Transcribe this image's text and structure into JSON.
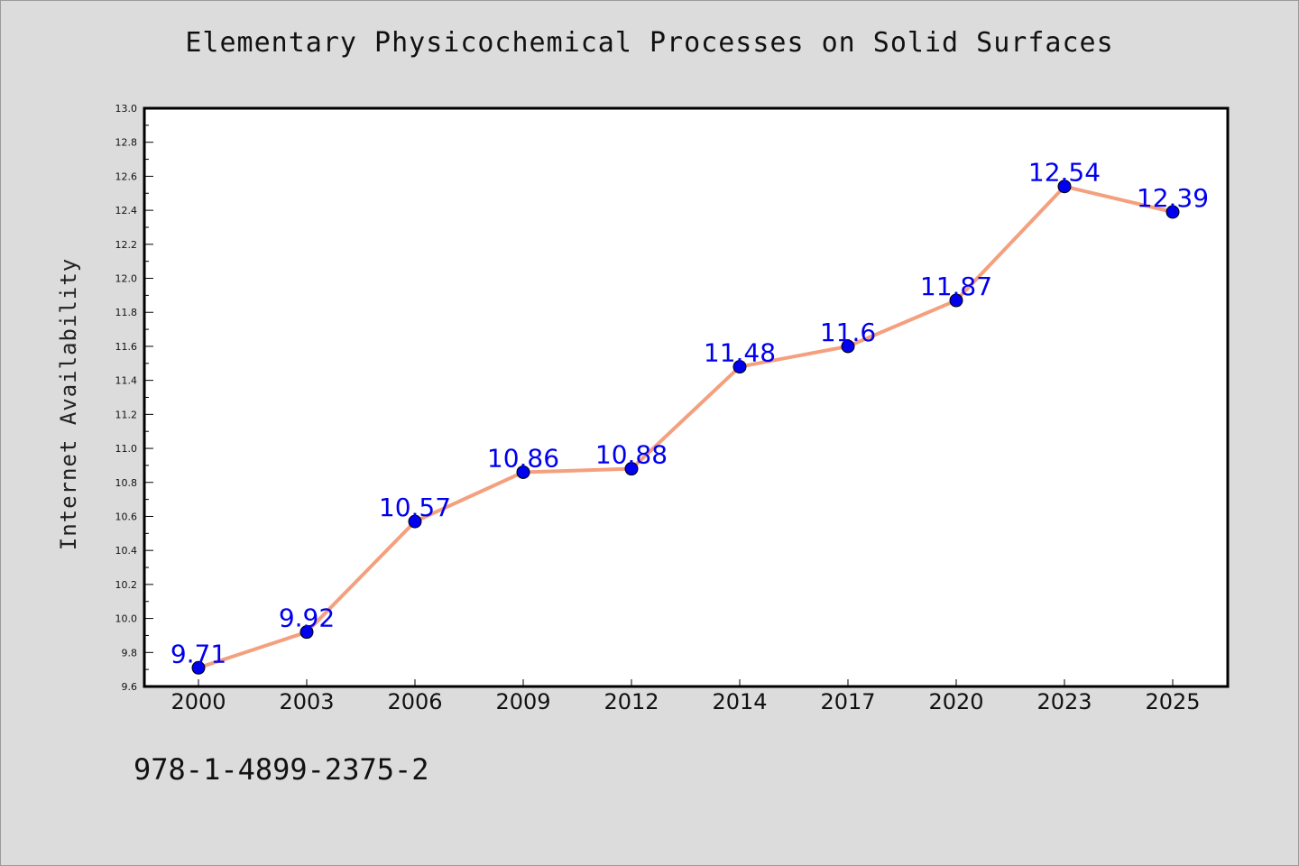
{
  "page": {
    "isbn": "978-1-4899-2375-2"
  },
  "chart_data": {
    "type": "line",
    "title": "Elementary Physicochemical Processes on Solid Surfaces",
    "xlabel": "",
    "ylabel": "Internet Availability",
    "categories": [
      "2000",
      "2003",
      "2006",
      "2009",
      "2012",
      "2014",
      "2017",
      "2020",
      "2023",
      "2025"
    ],
    "series": [
      {
        "values": [
          9.71,
          9.92,
          10.57,
          10.86,
          10.88,
          11.48,
          11.6,
          11.87,
          12.54,
          12.39
        ],
        "data_labels": [
          "9.71",
          "9.92",
          "10.57",
          "10.86",
          "10.88",
          "11.48",
          "11.6",
          "11.87",
          "12.54",
          "12.39"
        ]
      }
    ],
    "ylim": [
      9.6,
      13.0
    ],
    "yticks": [
      "9.6",
      "9.8",
      "10.0",
      "10.2",
      "10.4",
      "10.6",
      "10.8",
      "11.0",
      "11.2",
      "11.4",
      "11.6",
      "11.8",
      "12.0",
      "12.2",
      "12.4",
      "12.6",
      "12.8",
      "13.0"
    ],
    "grid": false,
    "legend": "none",
    "colors": {
      "line": "#f4a07e",
      "marker": "#0000ee",
      "data_label": "#0000ee",
      "plot_background": "#ffffff",
      "figure_background": "#dcdcdc"
    }
  }
}
